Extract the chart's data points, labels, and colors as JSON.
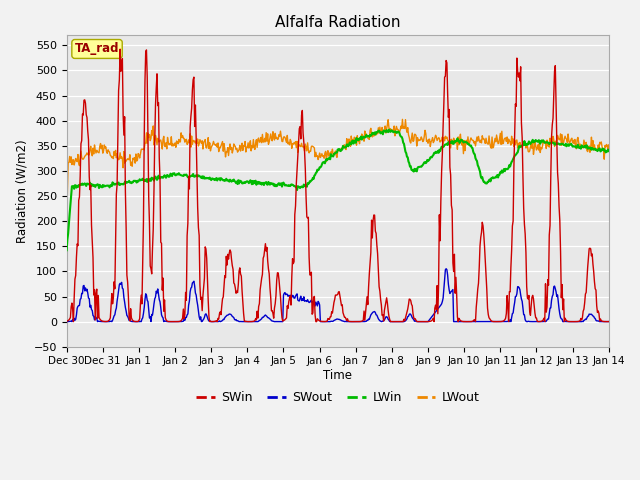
{
  "title": "Alfalfa Radiation",
  "ylabel": "Radiation (W/m2)",
  "xlabel": "Time",
  "annotation": "TA_rad",
  "ylim": [
    -50,
    570
  ],
  "bg_color": "#e8e8e8",
  "fig_bg": "#f2f2f2",
  "line_colors": {
    "SWin": "#cc0000",
    "SWout": "#0000cc",
    "LWin": "#00bb00",
    "LWout": "#ee8800"
  },
  "tick_labels": [
    "Dec 30",
    "Dec 31",
    "Jan 1",
    "Jan 2",
    "Jan 3",
    "Jan 4",
    "Jan 5",
    "Jan 6",
    "Jan 7",
    "Jan 8",
    "Jan 9",
    "Jan 10",
    "Jan 11",
    "Jan 12",
    "Jan 13",
    "Jan 14"
  ],
  "annotation_bg": "#ffff99",
  "annotation_text_color": "#990000",
  "annotation_edge": "#aaaa00"
}
